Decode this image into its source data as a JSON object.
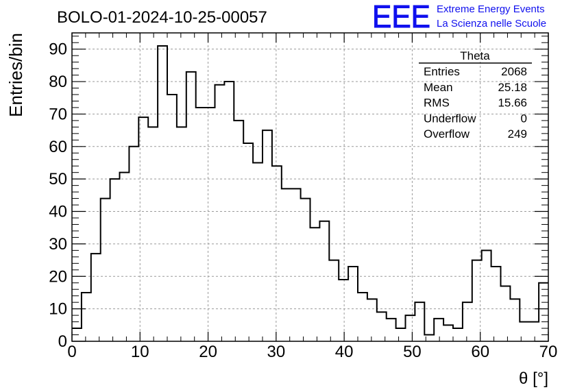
{
  "chart_data": {
    "type": "histogram",
    "title": "BOLO-01-2024-10-25-00057",
    "xlabel": "θ [°]",
    "ylabel": "Entries/bin",
    "xlim": [
      0,
      70
    ],
    "ylim": [
      0,
      95
    ],
    "bin_width": 1.4,
    "x_ticks": [
      "0",
      "10",
      "20",
      "30",
      "40",
      "50",
      "60",
      "70"
    ],
    "y_ticks": [
      "0",
      "10",
      "20",
      "30",
      "40",
      "50",
      "60",
      "70",
      "80",
      "90"
    ],
    "grid": true,
    "values": [
      4,
      15,
      27,
      44,
      50,
      52,
      60,
      69,
      66,
      91,
      76,
      66,
      83,
      72,
      72,
      79,
      80,
      68,
      61,
      55,
      65,
      54,
      47,
      47,
      44,
      35,
      37,
      25,
      19,
      23,
      15,
      13,
      9,
      7,
      4,
      8,
      12,
      2,
      7,
      5,
      4,
      12,
      25,
      28,
      23,
      17,
      13,
      6,
      6,
      18
    ],
    "stats": {
      "title": "Theta",
      "rows": [
        {
          "label": "Entries",
          "value": "2068"
        },
        {
          "label": "Mean",
          "value": "25.18"
        },
        {
          "label": "RMS",
          "value": "15.66"
        },
        {
          "label": "Underflow",
          "value": "0"
        },
        {
          "label": "Overflow",
          "value": "249"
        }
      ]
    }
  },
  "logo": {
    "text": "EEE",
    "line1": "Extreme Energy Events",
    "line2": "La Scienza nelle Scuole",
    "color": "#1010ee"
  }
}
